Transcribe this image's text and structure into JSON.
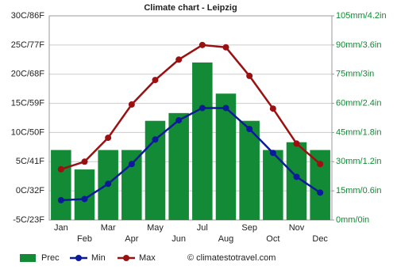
{
  "chart_data": {
    "type": "bar",
    "title": "Climate chart - Leipzig",
    "categories": [
      "Jan",
      "Feb",
      "Mar",
      "Apr",
      "May",
      "Jun",
      "Jul",
      "Aug",
      "Sep",
      "Oct",
      "Nov",
      "Dec"
    ],
    "series": [
      {
        "name": "Prec",
        "type": "bar",
        "axis": "y2",
        "color": "#138a35",
        "values": [
          36,
          26,
          36,
          36,
          51,
          55,
          81,
          65,
          51,
          36,
          40,
          36
        ]
      },
      {
        "name": "Min",
        "type": "line",
        "color": "#0a1a9a",
        "values": [
          -1.6,
          -1.4,
          1.2,
          4.6,
          8.8,
          12.1,
          14.2,
          14.2,
          10.6,
          6.5,
          2.4,
          -0.3
        ]
      },
      {
        "name": "Max",
        "type": "line",
        "color": "#9b1010",
        "values": [
          3.7,
          5.0,
          9.1,
          14.8,
          19.0,
          22.5,
          25.0,
          24.6,
          19.7,
          14.1,
          8.1,
          4.6
        ]
      }
    ],
    "ylim": [
      -5,
      30
    ],
    "yticks": [
      {
        "value": -5,
        "label": "-5C/23F"
      },
      {
        "value": 0,
        "label": "0C/32F"
      },
      {
        "value": 5,
        "label": "5C/41F"
      },
      {
        "value": 10,
        "label": "10C/50F"
      },
      {
        "value": 15,
        "label": "15C/59F"
      },
      {
        "value": 20,
        "label": "20C/68F"
      },
      {
        "value": 25,
        "label": "25C/77F"
      },
      {
        "value": 30,
        "label": "30C/86F"
      }
    ],
    "y2lim": [
      0,
      105
    ],
    "y2ticks": [
      {
        "value": 0,
        "label": "0mm/0in"
      },
      {
        "value": 15,
        "label": "15mm/0.6in"
      },
      {
        "value": 30,
        "label": "30mm/1.2in"
      },
      {
        "value": 45,
        "label": "45mm/1.8in"
      },
      {
        "value": 60,
        "label": "60mm/2.4in"
      },
      {
        "value": 75,
        "label": "75mm/3in"
      },
      {
        "value": 90,
        "label": "90mm/3.6in"
      },
      {
        "value": 105,
        "label": "105mm/4.2in"
      }
    ],
    "y2tick_color": "#138a35",
    "grid": true,
    "credit": "© climatestotravel.com"
  }
}
